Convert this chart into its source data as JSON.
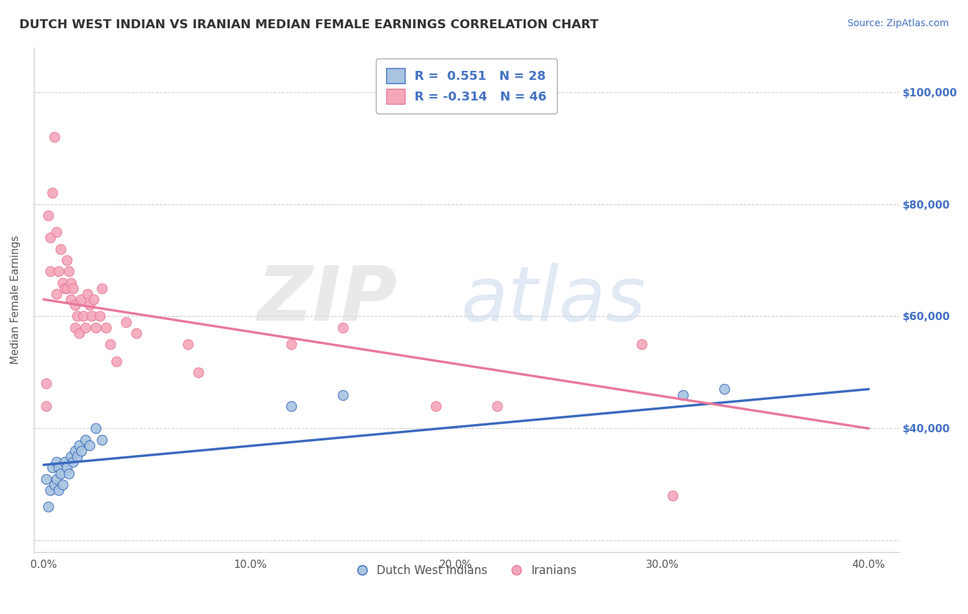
{
  "title": "DUTCH WEST INDIAN VS IRANIAN MEDIAN FEMALE EARNINGS CORRELATION CHART",
  "source": "Source: ZipAtlas.com",
  "ylabel": "Median Female Earnings",
  "xlim": [
    -0.005,
    0.415
  ],
  "ylim": [
    18000,
    108000
  ],
  "xtick_labels": [
    "0.0%",
    "",
    "",
    "",
    "10.0%",
    "",
    "",
    "",
    "",
    "20.0%",
    "",
    "",
    "",
    "",
    "30.0%",
    "",
    "",
    "",
    "",
    "40.0%"
  ],
  "xtick_major_labels": [
    "0.0%",
    "10.0%",
    "20.0%",
    "30.0%",
    "40.0%"
  ],
  "xtick_major_vals": [
    0.0,
    0.1,
    0.2,
    0.3,
    0.4
  ],
  "ytick_vals": [
    20000,
    40000,
    60000,
    80000,
    100000
  ],
  "right_ytick_labels": [
    "$40,000",
    "$60,000",
    "$80,000",
    "$100,000"
  ],
  "right_ytick_vals": [
    40000,
    60000,
    80000,
    100000
  ],
  "blue_R": "0.551",
  "blue_N": "28",
  "pink_R": "-0.314",
  "pink_N": "46",
  "blue_scatter_color": "#a8c4e0",
  "pink_scatter_color": "#f4a7b9",
  "blue_line_color": "#3a6abf",
  "pink_line_color": "#e8789a",
  "legend_label_blue": "Dutch West Indians",
  "legend_label_pink": "Iranians",
  "background_color": "#ffffff",
  "grid_color": "#cccccc",
  "blue_trend_x0": 0.0,
  "blue_trend_y0": 33500,
  "blue_trend_x1": 0.4,
  "blue_trend_y1": 47000,
  "pink_trend_x0": 0.0,
  "pink_trend_y0": 63000,
  "pink_trend_x1": 0.4,
  "pink_trend_y1": 40000,
  "blue_scatter_x": [
    0.001,
    0.002,
    0.003,
    0.004,
    0.005,
    0.006,
    0.006,
    0.007,
    0.007,
    0.008,
    0.009,
    0.01,
    0.011,
    0.012,
    0.013,
    0.014,
    0.015,
    0.016,
    0.017,
    0.018,
    0.02,
    0.022,
    0.025,
    0.028,
    0.12,
    0.145,
    0.31,
    0.33
  ],
  "blue_scatter_y": [
    31000,
    26000,
    29000,
    33000,
    30000,
    31000,
    34000,
    29000,
    33000,
    32000,
    30000,
    34000,
    33000,
    32000,
    35000,
    34000,
    36000,
    35000,
    37000,
    36000,
    38000,
    37000,
    40000,
    38000,
    44000,
    46000,
    46000,
    47000
  ],
  "pink_scatter_x": [
    0.001,
    0.001,
    0.002,
    0.003,
    0.003,
    0.004,
    0.005,
    0.006,
    0.006,
    0.007,
    0.008,
    0.009,
    0.01,
    0.011,
    0.011,
    0.012,
    0.013,
    0.013,
    0.014,
    0.015,
    0.015,
    0.016,
    0.017,
    0.018,
    0.019,
    0.02,
    0.021,
    0.022,
    0.023,
    0.024,
    0.025,
    0.027,
    0.028,
    0.03,
    0.032,
    0.035,
    0.04,
    0.045,
    0.07,
    0.075,
    0.12,
    0.145,
    0.19,
    0.22,
    0.29,
    0.305
  ],
  "pink_scatter_y": [
    44000,
    48000,
    78000,
    74000,
    68000,
    82000,
    92000,
    75000,
    64000,
    68000,
    72000,
    66000,
    65000,
    70000,
    65000,
    68000,
    66000,
    63000,
    65000,
    58000,
    62000,
    60000,
    57000,
    63000,
    60000,
    58000,
    64000,
    62000,
    60000,
    63000,
    58000,
    60000,
    65000,
    58000,
    55000,
    52000,
    59000,
    57000,
    55000,
    50000,
    55000,
    58000,
    44000,
    44000,
    55000,
    28000
  ]
}
